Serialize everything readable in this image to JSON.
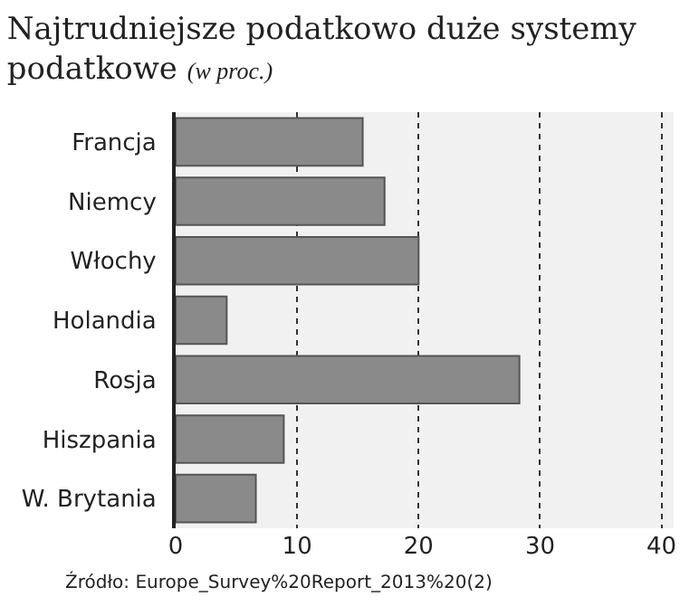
{
  "chart_data": {
    "type": "bar",
    "orientation": "horizontal",
    "title": "Najtrudniejsze podatkowo duże systemy podatkowe",
    "subtitle": "(w proc.)",
    "categories": [
      "Francja",
      "Niemcy",
      "Włochy",
      "Holandia",
      "Rosja",
      "Hiszpania",
      "W. Brytania"
    ],
    "values": [
      15.4,
      17.2,
      20.0,
      4.2,
      28.3,
      8.9,
      6.6
    ],
    "color": "#8a8a8a",
    "xlim": [
      0,
      41
    ],
    "xticks": [
      0,
      10,
      20,
      30,
      40
    ],
    "grid": "x",
    "annotations": [
      "Źródło: Europe_Survey%20Report_2013%20(2)"
    ]
  }
}
